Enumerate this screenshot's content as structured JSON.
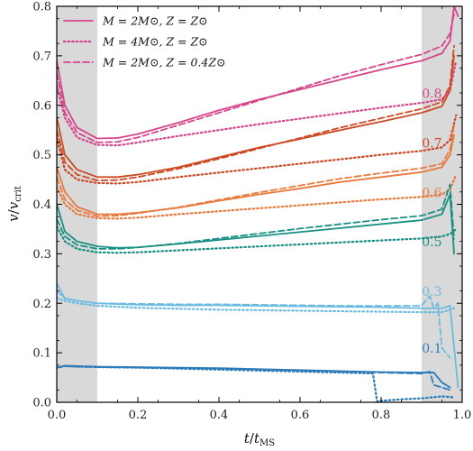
{
  "chart_data": {
    "type": "line",
    "xlabel": "t/t_MS",
    "ylabel": "v/v_crit",
    "xlim": [
      0.0,
      1.0
    ],
    "ylim": [
      0.0,
      0.8
    ],
    "x_ticks": [
      "0.0",
      "0.2",
      "0.4",
      "0.6",
      "0.8",
      "1.0"
    ],
    "y_ticks": [
      "0.0",
      "0.1",
      "0.2",
      "0.3",
      "0.4",
      "0.5",
      "0.6",
      "0.7",
      "0.8"
    ],
    "shaded_regions": [
      [
        0.0,
        0.1
      ],
      [
        0.9,
        1.0
      ]
    ],
    "grid": false,
    "legend_position": "top-left",
    "legend": [
      {
        "label": "M = 2M⊙, Z = Z⊙",
        "style": "solid"
      },
      {
        "label": "M = 4M⊙, Z = Z⊙",
        "style": "dotted"
      },
      {
        "label": "M = 2M⊙, Z = 0.4Z⊙",
        "style": "dashed"
      }
    ],
    "groups": [
      {
        "label": "0.8",
        "color": "#d6458a",
        "label_x": 0.95,
        "label_y": 0.615,
        "series": [
          {
            "style": "solid",
            "x": [
              0.0,
              0.02,
              0.05,
              0.1,
              0.15,
              0.2,
              0.3,
              0.4,
              0.5,
              0.6,
              0.7,
              0.8,
              0.9,
              0.95,
              0.97,
              0.98,
              0.99
            ],
            "y": [
              0.69,
              0.6,
              0.555,
              0.533,
              0.534,
              0.542,
              0.565,
              0.59,
              0.612,
              0.632,
              0.652,
              0.672,
              0.69,
              0.705,
              0.73,
              0.8,
              0.78
            ]
          },
          {
            "style": "dashed",
            "x": [
              0.0,
              0.02,
              0.05,
              0.1,
              0.15,
              0.2,
              0.3,
              0.4,
              0.5,
              0.6,
              0.7,
              0.8,
              0.9,
              0.95,
              0.97,
              0.98
            ],
            "y": [
              0.665,
              0.585,
              0.545,
              0.525,
              0.526,
              0.535,
              0.56,
              0.585,
              0.61,
              0.635,
              0.66,
              0.682,
              0.703,
              0.72,
              0.745,
              0.785
            ]
          },
          {
            "style": "dotted",
            "x": [
              0.0,
              0.02,
              0.05,
              0.1,
              0.15,
              0.2,
              0.3,
              0.4,
              0.5,
              0.6,
              0.7,
              0.8,
              0.9,
              0.95,
              0.97,
              0.985
            ],
            "y": [
              0.64,
              0.575,
              0.535,
              0.52,
              0.519,
              0.525,
              0.538,
              0.55,
              0.562,
              0.573,
              0.584,
              0.595,
              0.605,
              0.612,
              0.63,
              0.69
            ]
          }
        ]
      },
      {
        "label": "0.7",
        "color": "#cc4a24",
        "label_x": 0.95,
        "label_y": 0.515,
        "series": [
          {
            "style": "solid",
            "x": [
              0.0,
              0.02,
              0.05,
              0.1,
              0.15,
              0.2,
              0.3,
              0.4,
              0.5,
              0.6,
              0.7,
              0.8,
              0.9,
              0.95,
              0.97,
              0.98
            ],
            "y": [
              0.575,
              0.5,
              0.47,
              0.455,
              0.455,
              0.46,
              0.475,
              0.495,
              0.515,
              0.532,
              0.55,
              0.567,
              0.585,
              0.598,
              0.63,
              0.7
            ]
          },
          {
            "style": "dashed",
            "x": [
              0.0,
              0.02,
              0.05,
              0.1,
              0.15,
              0.2,
              0.3,
              0.4,
              0.5,
              0.6,
              0.7,
              0.8,
              0.9,
              0.95,
              0.97,
              0.98
            ],
            "y": [
              0.55,
              0.485,
              0.46,
              0.448,
              0.449,
              0.455,
              0.472,
              0.492,
              0.513,
              0.534,
              0.555,
              0.574,
              0.593,
              0.607,
              0.64,
              0.72
            ]
          },
          {
            "style": "dotted",
            "x": [
              0.0,
              0.02,
              0.05,
              0.1,
              0.15,
              0.2,
              0.3,
              0.4,
              0.5,
              0.6,
              0.7,
              0.8,
              0.9,
              0.95,
              0.97,
              0.985
            ],
            "y": [
              0.535,
              0.47,
              0.45,
              0.443,
              0.442,
              0.445,
              0.455,
              0.464,
              0.473,
              0.482,
              0.491,
              0.5,
              0.508,
              0.515,
              0.53,
              0.58
            ]
          }
        ]
      },
      {
        "label": "0.6",
        "color": "#e97a3f",
        "label_x": 0.95,
        "label_y": 0.415,
        "series": [
          {
            "style": "solid",
            "x": [
              0.0,
              0.02,
              0.05,
              0.1,
              0.15,
              0.2,
              0.3,
              0.4,
              0.5,
              0.6,
              0.7,
              0.8,
              0.9,
              0.95,
              0.97,
              0.98
            ],
            "y": [
              0.475,
              0.425,
              0.395,
              0.38,
              0.38,
              0.383,
              0.393,
              0.407,
              0.42,
              0.432,
              0.445,
              0.455,
              0.465,
              0.475,
              0.5,
              0.54
            ]
          },
          {
            "style": "dashed",
            "x": [
              0.0,
              0.02,
              0.05,
              0.1,
              0.15,
              0.2,
              0.3,
              0.4,
              0.5,
              0.6,
              0.7,
              0.8,
              0.9,
              0.95,
              0.97,
              0.98
            ],
            "y": [
              0.455,
              0.41,
              0.388,
              0.376,
              0.377,
              0.382,
              0.394,
              0.409,
              0.424,
              0.438,
              0.452,
              0.463,
              0.473,
              0.482,
              0.51,
              0.56
            ]
          },
          {
            "style": "dotted",
            "x": [
              0.0,
              0.02,
              0.05,
              0.1,
              0.15,
              0.2,
              0.3,
              0.4,
              0.5,
              0.6,
              0.7,
              0.8,
              0.9,
              0.95,
              0.97,
              0.985
            ],
            "y": [
              0.435,
              0.4,
              0.38,
              0.372,
              0.371,
              0.373,
              0.38,
              0.386,
              0.392,
              0.398,
              0.404,
              0.41,
              0.415,
              0.42,
              0.43,
              0.46
            ]
          }
        ]
      },
      {
        "label": "0.5",
        "color": "#1a8f86",
        "label_x": 0.95,
        "label_y": 0.315,
        "series": [
          {
            "style": "solid",
            "x": [
              0.0,
              0.02,
              0.05,
              0.1,
              0.15,
              0.2,
              0.3,
              0.4,
              0.5,
              0.6,
              0.7,
              0.8,
              0.9,
              0.95,
              0.97,
              0.98
            ],
            "y": [
              0.4,
              0.345,
              0.325,
              0.315,
              0.312,
              0.313,
              0.32,
              0.328,
              0.336,
              0.344,
              0.352,
              0.36,
              0.368,
              0.38,
              0.42,
              0.3
            ]
          },
          {
            "style": "dashed",
            "x": [
              0.0,
              0.02,
              0.05,
              0.1,
              0.15,
              0.2,
              0.3,
              0.4,
              0.5,
              0.6,
              0.7,
              0.8,
              0.9,
              0.95,
              0.97,
              0.98
            ],
            "y": [
              0.37,
              0.335,
              0.318,
              0.31,
              0.31,
              0.313,
              0.321,
              0.331,
              0.341,
              0.351,
              0.36,
              0.369,
              0.377,
              0.39,
              0.44,
              0.33
            ]
          },
          {
            "style": "dotted",
            "x": [
              0.0,
              0.02,
              0.05,
              0.1,
              0.15,
              0.2,
              0.3,
              0.4,
              0.5,
              0.6,
              0.7,
              0.8,
              0.9,
              0.95,
              0.97,
              0.985
            ],
            "y": [
              0.355,
              0.325,
              0.31,
              0.303,
              0.302,
              0.303,
              0.307,
              0.311,
              0.315,
              0.319,
              0.323,
              0.327,
              0.331,
              0.335,
              0.34,
              0.35
            ]
          }
        ]
      },
      {
        "label": "0.3",
        "color": "#6bbbe0",
        "label_x": 0.95,
        "label_y": 0.215,
        "series": [
          {
            "style": "solid",
            "x": [
              0.0,
              0.02,
              0.05,
              0.1,
              0.2,
              0.3,
              0.4,
              0.5,
              0.6,
              0.7,
              0.8,
              0.9,
              0.95,
              0.97,
              0.99
            ],
            "y": [
              0.24,
              0.21,
              0.205,
              0.2,
              0.197,
              0.196,
              0.196,
              0.195,
              0.194,
              0.193,
              0.192,
              0.19,
              0.19,
              0.195,
              0.03
            ]
          },
          {
            "style": "dashed",
            "x": [
              0.0,
              0.02,
              0.05,
              0.1,
              0.2,
              0.3,
              0.4,
              0.5,
              0.6,
              0.7,
              0.8,
              0.9,
              0.92,
              0.93,
              0.94,
              0.95,
              0.97
            ],
            "y": [
              0.225,
              0.21,
              0.205,
              0.2,
              0.199,
              0.198,
              0.198,
              0.197,
              0.196,
              0.195,
              0.195,
              0.195,
              0.215,
              0.19,
              0.2,
              0.11,
              0.09
            ]
          },
          {
            "style": "dotted",
            "x": [
              0.0,
              0.02,
              0.05,
              0.1,
              0.2,
              0.3,
              0.4,
              0.5,
              0.6,
              0.7,
              0.8,
              0.9,
              0.95,
              0.98
            ],
            "y": [
              0.21,
              0.205,
              0.2,
              0.195,
              0.191,
              0.189,
              0.187,
              0.186,
              0.185,
              0.184,
              0.183,
              0.182,
              0.182,
              0.19
            ]
          }
        ]
      },
      {
        "label": "0.1",
        "color": "#2b7bba",
        "label_x": 0.95,
        "label_y": 0.1,
        "series": [
          {
            "style": "solid",
            "x": [
              0.0,
              0.02,
              0.05,
              0.1,
              0.2,
              0.3,
              0.4,
              0.5,
              0.6,
              0.7,
              0.8,
              0.9,
              0.93,
              0.95,
              0.97
            ],
            "y": [
              0.07,
              0.074,
              0.073,
              0.072,
              0.071,
              0.07,
              0.069,
              0.067,
              0.065,
              0.063,
              0.061,
              0.06,
              0.06,
              0.04,
              0.03
            ]
          },
          {
            "style": "dashed",
            "x": [
              0.0,
              0.02,
              0.05,
              0.1,
              0.2,
              0.3,
              0.4,
              0.5,
              0.6,
              0.7,
              0.8,
              0.9,
              0.92,
              0.93,
              0.95,
              0.97
            ],
            "y": [
              0.07,
              0.073,
              0.072,
              0.071,
              0.07,
              0.069,
              0.068,
              0.066,
              0.064,
              0.062,
              0.06,
              0.058,
              0.062,
              0.035,
              0.03,
              0.025
            ]
          },
          {
            "style": "dotted",
            "x": [
              0.0,
              0.02,
              0.05,
              0.1,
              0.2,
              0.3,
              0.4,
              0.5,
              0.6,
              0.7,
              0.75,
              0.78,
              0.79,
              0.8,
              0.85,
              0.9,
              0.95,
              0.98
            ],
            "y": [
              0.07,
              0.073,
              0.072,
              0.071,
              0.07,
              0.068,
              0.066,
              0.064,
              0.062,
              0.06,
              0.059,
              0.058,
              0.002,
              0.003,
              0.006,
              0.008,
              0.012,
              0.01
            ]
          }
        ]
      }
    ]
  }
}
